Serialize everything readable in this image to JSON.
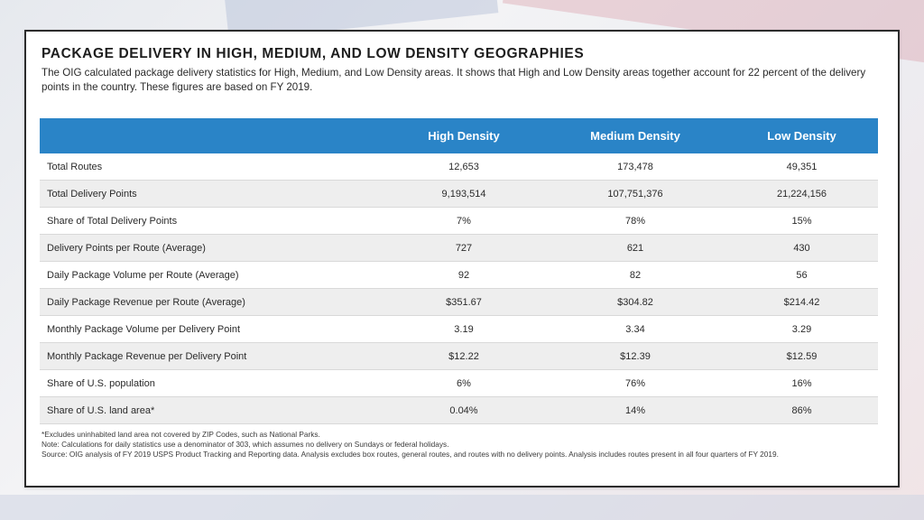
{
  "title": "PACKAGE DELIVERY IN HIGH, MEDIUM, AND LOW DENSITY GEOGRAPHIES",
  "intro": "The OIG calculated package delivery statistics for High, Medium, and Low Density areas. It shows that High and Low Density areas together account for 22 percent of the delivery points in the country. These figures are based on FY 2019.",
  "colors": {
    "header_bg": "#2a84c7",
    "stripe_row": "#eeeeee"
  },
  "table": {
    "headers": [
      "",
      "High Density",
      "Medium Density",
      "Low Density"
    ],
    "rows": [
      {
        "label": "Total Routes",
        "high": "12,653",
        "medium": "173,478",
        "low": "49,351"
      },
      {
        "label": "Total Delivery Points",
        "high": "9,193,514",
        "medium": "107,751,376",
        "low": "21,224,156"
      },
      {
        "label": "Share of Total Delivery Points",
        "high": "7%",
        "medium": "78%",
        "low": "15%"
      },
      {
        "label": "Delivery Points per Route (Average)",
        "high": "727",
        "medium": "621",
        "low": "430"
      },
      {
        "label": "Daily Package Volume per Route (Average)",
        "high": "92",
        "medium": "82",
        "low": "56"
      },
      {
        "label": "Daily Package Revenue per Route (Average)",
        "high": "$351.67",
        "medium": "$304.82",
        "low": "$214.42"
      },
      {
        "label": "Monthly Package Volume per Delivery Point",
        "high": "3.19",
        "medium": "3.34",
        "low": "3.29"
      },
      {
        "label": "Monthly Package Revenue per Delivery Point",
        "high": "$12.22",
        "medium": "$12.39",
        "low": "$12.59"
      },
      {
        "label": "Share of U.S. population",
        "high": "6%",
        "medium": "76%",
        "low": "16%"
      },
      {
        "label": "Share of U.S. land area*",
        "high": "0.04%",
        "medium": "14%",
        "low": "86%"
      }
    ]
  },
  "notes": [
    "*Excludes uninhabited land area not covered by ZIP Codes, such as National Parks.",
    "Note: Calculations for daily statistics use a denominator of 303, which assumes no delivery on Sundays or federal holidays.",
    "Source: OIG analysis of FY 2019 USPS Product Tracking and Reporting data. Analysis excludes box routes, general routes, and routes with no delivery points. Analysis includes routes present in all four quarters of FY 2019."
  ]
}
